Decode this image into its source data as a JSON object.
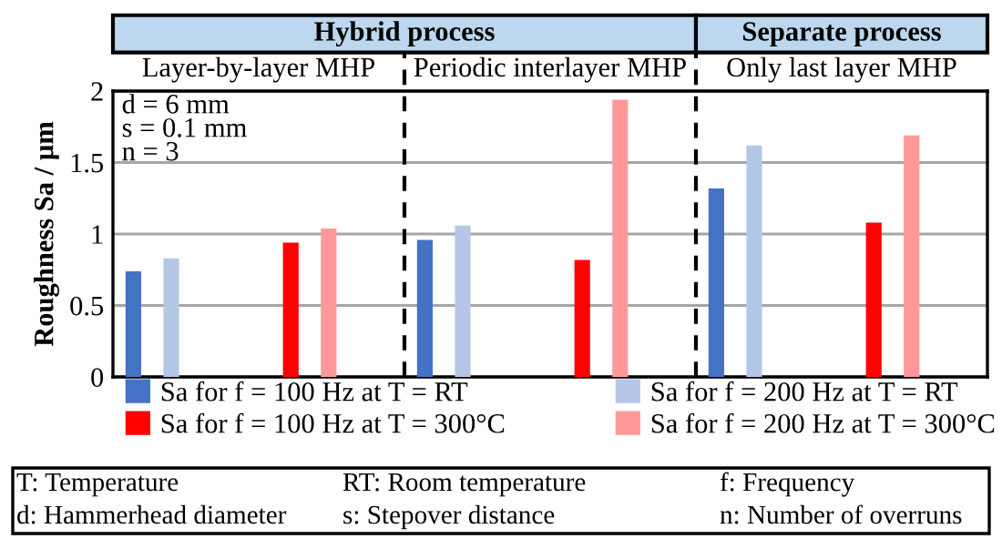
{
  "chart_data": {
    "type": "bar",
    "ylabel": "Roughness Sa / µm",
    "categories": [
      "Layer-by-layer MHP",
      "Periodic interlayer MHP",
      "Only last layer MHP"
    ],
    "series": [
      {
        "name": "Sa for f = 100 Hz at T = RT",
        "color": "#4472c4",
        "values": [
          0.73,
          0.95,
          1.31
        ]
      },
      {
        "name": "Sa for f = 200 Hz at T = RT",
        "color": "#b4c7e7",
        "values": [
          0.82,
          1.05,
          1.61
        ]
      },
      {
        "name": "Sa for f = 100 Hz at T = 300°C",
        "color": "#ff0000",
        "values": [
          0.93,
          0.81,
          1.07
        ]
      },
      {
        "name": "Sa for f = 200 Hz at T = 300°C",
        "color": "#ff9999",
        "values": [
          1.03,
          1.93,
          1.68
        ]
      }
    ],
    "ylim": [
      0,
      2
    ],
    "yticks": [
      0,
      0.5,
      1,
      1.5,
      2
    ],
    "grid": "y",
    "legend": "bottom",
    "annotations": [
      "Hybrid process",
      "Separate process",
      "d = 6 mm",
      "s = 0.1 mm",
      "n = 3",
      "T: Temperature",
      "RT: Room temperature",
      "f: Frequency",
      "d: Hammerhead diameter",
      "s: Stepover distance",
      "n: Number of overruns"
    ]
  }
}
